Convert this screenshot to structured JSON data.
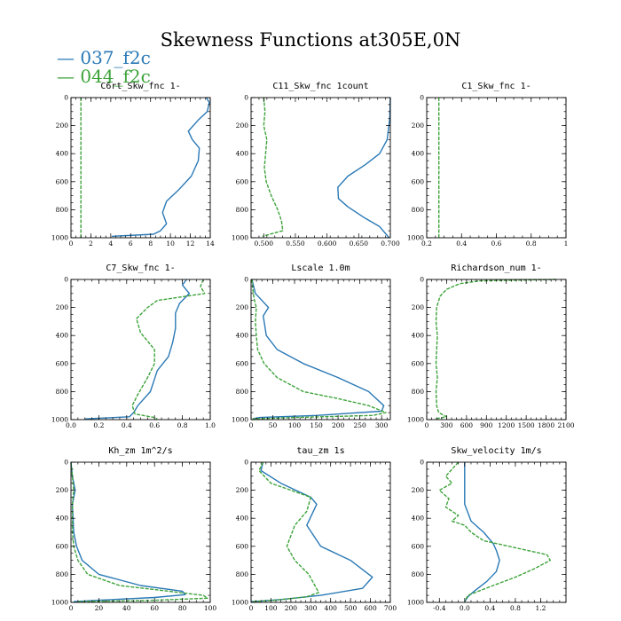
{
  "figure_title": "Skewness Functions at305E,0N",
  "legend": [
    {
      "label": "— 037_f2c",
      "color": "#2a79b5"
    },
    {
      "label": "— 044_f2c",
      "color": "#3da33a",
      "dashed": true
    }
  ],
  "chart_data": [
    {
      "type": "line",
      "title": "C6rt_Skw_fnc   1-",
      "xlim": [
        0,
        14
      ],
      "ylim": [
        1000,
        0
      ],
      "xticks": [
        0,
        2,
        4,
        6,
        8,
        10,
        12,
        14
      ],
      "yticks": [
        0,
        200,
        400,
        600,
        800,
        1000
      ],
      "series": [
        {
          "name": "037_f2c",
          "x": [
            13.6,
            13.9,
            13.7,
            12.8,
            11.8,
            12.2,
            12.9,
            12.8,
            12.1,
            10.8,
            9.6,
            9.2,
            9.6,
            9.0,
            8.3,
            4.1
          ],
          "y": [
            0,
            35,
            100,
            160,
            240,
            300,
            360,
            450,
            560,
            660,
            740,
            820,
            900,
            950,
            975,
            990
          ]
        },
        {
          "name": "044_f2c",
          "x": [
            1.0,
            1.0,
            1.0
          ],
          "y": [
            0,
            500,
            1000
          ]
        }
      ]
    },
    {
      "type": "line",
      "title": "C11_Skw_fnc   1count",
      "xlim": [
        0.48,
        0.7
      ],
      "ylim": [
        1000,
        0
      ],
      "xticks": [
        0.5,
        0.55,
        0.6,
        0.65,
        0.7
      ],
      "xticklabels": [
        "0.500",
        "0.550",
        "0.600",
        "0.650",
        "0.700"
      ],
      "yticks": [
        0,
        200,
        400,
        600,
        800,
        1000
      ],
      "series": [
        {
          "name": "037_f2c",
          "x": [
            0.7,
            0.699,
            0.695,
            0.683,
            0.66,
            0.633,
            0.617,
            0.618,
            0.633,
            0.66,
            0.683,
            0.698
          ],
          "y": [
            0,
            150,
            300,
            400,
            480,
            560,
            640,
            720,
            780,
            860,
            920,
            1000
          ]
        },
        {
          "name": "044_f2c",
          "x": [
            0.5,
            0.502,
            0.5,
            0.505,
            0.503,
            0.501,
            0.504,
            0.512,
            0.522,
            0.528,
            0.53,
            0.51,
            0.498
          ],
          "y": [
            0,
            100,
            200,
            300,
            400,
            500,
            600,
            700,
            800,
            880,
            950,
            975,
            990
          ]
        }
      ]
    },
    {
      "type": "line",
      "title": "C1_Skw_fnc   1-",
      "xlim": [
        0.2,
        1.0
      ],
      "ylim": [
        1000,
        0
      ],
      "xticks": [
        0.2,
        0.4,
        0.6,
        0.8,
        1.0
      ],
      "yticks": [
        0,
        200,
        400,
        600,
        800,
        1000
      ],
      "series": [
        {
          "name": "044_f2c",
          "x": [
            0.27,
            0.27,
            0.27
          ],
          "y": [
            0,
            500,
            1000
          ]
        }
      ]
    },
    {
      "type": "line",
      "title": "C7_Skw_fnc   1-",
      "xlim": [
        0,
        1.0
      ],
      "ylim": [
        1000,
        0
      ],
      "xticks": [
        0,
        0.2,
        0.4,
        0.6,
        0.8,
        1.0
      ],
      "xticklabels": [
        "0.0",
        "0.2",
        "0.4",
        "0.6",
        "0.8",
        "1.0"
      ],
      "yticks": [
        0,
        200,
        400,
        600,
        800,
        1000
      ],
      "series": [
        {
          "name": "037_f2c",
          "x": [
            0.83,
            0.8,
            0.85,
            0.78,
            0.75,
            0.75,
            0.73,
            0.7,
            0.62,
            0.57,
            0.48,
            0.45,
            0.42,
            0.1
          ],
          "y": [
            0,
            40,
            100,
            170,
            240,
            350,
            450,
            550,
            650,
            800,
            900,
            950,
            980,
            995
          ]
        },
        {
          "name": "044_f2c",
          "x": [
            0.95,
            0.93,
            0.96,
            0.62,
            0.55,
            0.47,
            0.5,
            0.6,
            0.6,
            0.55,
            0.48,
            0.44,
            0.46,
            0.6,
            0.62
          ],
          "y": [
            0,
            50,
            100,
            150,
            200,
            280,
            380,
            500,
            600,
            700,
            820,
            900,
            960,
            985,
            995
          ]
        }
      ]
    },
    {
      "type": "line",
      "title": "Lscale   1.0m",
      "xlim": [
        0,
        320
      ],
      "ylim": [
        1000,
        0
      ],
      "xticks": [
        0,
        50,
        100,
        150,
        200,
        250,
        300
      ],
      "yticks": [
        0,
        200,
        400,
        600,
        800,
        1000
      ],
      "series": [
        {
          "name": "037_f2c",
          "x": [
            2,
            10,
            25,
            40,
            28,
            30,
            35,
            60,
            120,
            200,
            270,
            305,
            300,
            150,
            20,
            3
          ],
          "y": [
            0,
            100,
            150,
            200,
            260,
            300,
            400,
            500,
            600,
            700,
            800,
            900,
            940,
            970,
            985,
            995
          ]
        },
        {
          "name": "044_f2c",
          "x": [
            2,
            5,
            8,
            12,
            10,
            12,
            15,
            30,
            60,
            120,
            200,
            270,
            310,
            280,
            100,
            3
          ],
          "y": [
            0,
            100,
            150,
            200,
            300,
            400,
            500,
            600,
            700,
            800,
            850,
            900,
            950,
            970,
            985,
            995
          ]
        }
      ]
    },
    {
      "type": "line",
      "title": "Richardson_num   1-",
      "xlim": [
        0,
        2100
      ],
      "ylim": [
        1000,
        0
      ],
      "xticks": [
        0,
        300,
        600,
        900,
        1200,
        1500,
        1800,
        2100
      ],
      "yticks": [
        0,
        200,
        400,
        600,
        800,
        1000
      ],
      "series": [
        {
          "name": "044_f2c",
          "x": [
            1950,
            800,
            500,
            300,
            200,
            150,
            140,
            160,
            150,
            140,
            160,
            140,
            150,
            180,
            300,
            120
          ],
          "y": [
            0,
            10,
            30,
            70,
            120,
            200,
            300,
            400,
            500,
            600,
            700,
            800,
            900,
            950,
            980,
            995
          ]
        }
      ]
    },
    {
      "type": "line",
      "title": "Kh_zm   1m^2/s",
      "xlim": [
        0,
        100
      ],
      "ylim": [
        1000,
        0
      ],
      "xticks": [
        0,
        20,
        40,
        60,
        80,
        100
      ],
      "yticks": [
        0,
        200,
        400,
        600,
        800,
        1000
      ],
      "series": [
        {
          "name": "037_f2c",
          "x": [
            0,
            1,
            3,
            1,
            2,
            4,
            8,
            20,
            50,
            80,
            82,
            60,
            20,
            2
          ],
          "y": [
            0,
            100,
            200,
            300,
            500,
            600,
            700,
            800,
            880,
            920,
            945,
            965,
            985,
            995
          ]
        },
        {
          "name": "044_f2c",
          "x": [
            0,
            1,
            2,
            1,
            1,
            2,
            5,
            12,
            35,
            70,
            95,
            98,
            60,
            5
          ],
          "y": [
            0,
            100,
            200,
            300,
            500,
            600,
            700,
            800,
            880,
            920,
            950,
            970,
            985,
            995
          ]
        }
      ]
    },
    {
      "type": "line",
      "title": "tau_zm   1s",
      "xlim": [
        0,
        700
      ],
      "ylim": [
        1000,
        0
      ],
      "xticks": [
        0,
        100,
        200,
        300,
        400,
        500,
        600,
        700
      ],
      "yticks": [
        0,
        200,
        400,
        600,
        800,
        1000
      ],
      "series": [
        {
          "name": "037_f2c",
          "x": [
            60,
            50,
            150,
            300,
            330,
            280,
            350,
            500,
            610,
            560,
            350,
            150,
            0
          ],
          "y": [
            0,
            60,
            150,
            250,
            300,
            450,
            600,
            700,
            820,
            900,
            950,
            980,
            995
          ]
        },
        {
          "name": "044_f2c",
          "x": [
            60,
            40,
            100,
            200,
            300,
            280,
            220,
            180,
            220,
            290,
            340,
            280,
            120,
            5
          ],
          "y": [
            0,
            60,
            150,
            200,
            250,
            350,
            450,
            600,
            700,
            800,
            930,
            960,
            985,
            995
          ]
        }
      ]
    },
    {
      "type": "line",
      "title": "Skw_velocity   1m/s",
      "xlim": [
        -0.6,
        1.6
      ],
      "ylim": [
        1000,
        0
      ],
      "xticks": [
        -0.4,
        0,
        0.4,
        0.8,
        1.2
      ],
      "xticklabels": [
        "-0.4",
        "0.0",
        "0.4",
        "0.8",
        "1.2"
      ],
      "yticks": [
        0,
        200,
        400,
        600,
        800,
        1000
      ],
      "series": [
        {
          "name": "037_f2c",
          "x": [
            0,
            0,
            0,
            0.1,
            0.3,
            0.45,
            0.5,
            0.55,
            0.5,
            0.35,
            0.15,
            0.05,
            0
          ],
          "y": [
            0,
            100,
            300,
            420,
            500,
            580,
            630,
            700,
            780,
            850,
            920,
            960,
            995
          ]
        },
        {
          "name": "044_f2c",
          "x": [
            -0.1,
            -0.3,
            -0.2,
            -0.4,
            -0.25,
            -0.3,
            -0.1,
            -0.2,
            0,
            0.1,
            0.3,
            0.9,
            1.3,
            1.35,
            1.1,
            0.8,
            0.45,
            0.05,
            0
          ],
          "y": [
            0,
            100,
            150,
            200,
            260,
            320,
            380,
            420,
            450,
            500,
            560,
            620,
            660,
            700,
            760,
            820,
            880,
            950,
            995
          ]
        }
      ]
    }
  ]
}
